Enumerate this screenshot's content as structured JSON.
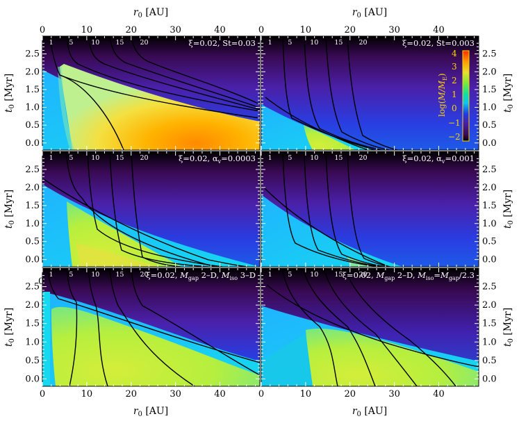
{
  "chart_data": {
    "type": "heatmap",
    "description_axes": {
      "xlabel": "r₀ [AU]",
      "ylabel": "t₀ [Myr]",
      "xlim": [
        0,
        49
      ],
      "ylim": [
        -0.2,
        3.0
      ],
      "x_ticks": [
        0,
        10,
        20,
        30,
        40
      ],
      "y_ticks": [
        0.0,
        0.5,
        1.0,
        1.5,
        2.0,
        2.5
      ]
    },
    "colorbar": {
      "label": "log(M/M_E)",
      "range": [
        -2.3,
        4.3
      ],
      "ticks": [
        4,
        3,
        2,
        1,
        0,
        -1,
        -2
      ]
    },
    "contour_levels": [
      1,
      5,
      10,
      15,
      20
    ],
    "panels": [
      {
        "id": "top-left",
        "annotation": "ξ=0.02, St=0.03",
        "peak_log_mass": 3.2,
        "onset_r": 3,
        "top_t": 2.2,
        "bottom_r": 34,
        "contours": [
          [
            2,
            0.0
          ],
          [
            3,
            2.2
          ],
          [
            6,
            2.0
          ],
          [
            12,
            1.6
          ],
          [
            22,
            1.2
          ],
          [
            35,
            0.95
          ],
          [
            49,
            0.85
          ]
        ],
        "extra_contours_x": [
          12,
          18,
          24,
          31
        ]
      },
      {
        "id": "top-right",
        "annotation": "ξ=0.02, St=0.003",
        "peak_log_mass": 1.8,
        "onset_r": 10,
        "top_t": 0.5,
        "bottom_r": 22,
        "contours": [],
        "extra_contours_x": [
          5,
          10,
          15,
          20
        ]
      },
      {
        "id": "mid-left",
        "annotation": "ξ=0.02, αᵥ=0.0003",
        "peak_log_mass": 2.2,
        "onset_r": 6,
        "top_t": 1.6,
        "bottom_r": 32,
        "contours": [],
        "extra_contours_x": [
          5,
          10,
          15,
          20
        ]
      },
      {
        "id": "mid-right",
        "annotation": "ξ=0.02, αᵥ=0.001",
        "peak_log_mass": 1.0,
        "onset_r": 20,
        "top_t": 0.2,
        "bottom_r": 28,
        "contours": [],
        "extra_contours_x": [
          5,
          10,
          15,
          20
        ]
      },
      {
        "id": "bot-left",
        "annotation": "ξ=0.02, M_gap 2–D, M_iso 3–D",
        "peak_log_mass": 1.8,
        "onset_r": 2,
        "top_t": 2.2,
        "bottom_r": 49,
        "contours": [],
        "extra_contours_x": [
          5,
          10,
          15,
          20
        ]
      },
      {
        "id": "bot-right",
        "annotation": "ξ=0.02, M_gap 2–D, M_iso=M_gap/2.3",
        "peak_log_mass": 1.4,
        "onset_r": 10,
        "top_t": 1.1,
        "bottom_r": 49,
        "contours": [],
        "extra_contours_x": [
          5,
          10,
          15,
          20
        ]
      }
    ]
  },
  "labels": {
    "annot_tl_a": "ξ=0.02, St=0.03",
    "annot_tr_a": "ξ=0.02, St=0.003",
    "annot_ml_a": "ξ=0.02, α",
    "annot_ml_sub": "v",
    "annot_ml_b": "=0.0003",
    "annot_mr_a": "ξ=0.02, α",
    "annot_mr_sub": "v",
    "annot_mr_b": "=0.001",
    "annot_bl_a": "ξ=0.02, ",
    "annot_bl_M1": "M",
    "annot_bl_s1": "gap",
    "annot_bl_mid": " 2–D, ",
    "annot_bl_M2": "M",
    "annot_bl_s2": "iso",
    "annot_bl_end": " 3–D",
    "annot_br_a": "ξ=0.02, ",
    "annot_br_M1": "M",
    "annot_br_s1": "gap",
    "annot_br_mid": " 2–D, ",
    "annot_br_M2": "M",
    "annot_br_s2": "iso",
    "annot_br_eq": "=",
    "annot_br_M3": "M",
    "annot_br_s3": "gap",
    "annot_br_end": "/2.3",
    "xlabel_r": "r",
    "xlabel_sub": "0",
    "xlabel_unit": " [AU]",
    "ylabel_t": "t",
    "ylabel_sub": "0",
    "ylabel_unit": " [Myr]",
    "cbar_label_log": "log(",
    "cbar_label_M": "M/M",
    "cbar_label_E": "E",
    "cbar_label_close": ")",
    "stray_zero": "0"
  }
}
